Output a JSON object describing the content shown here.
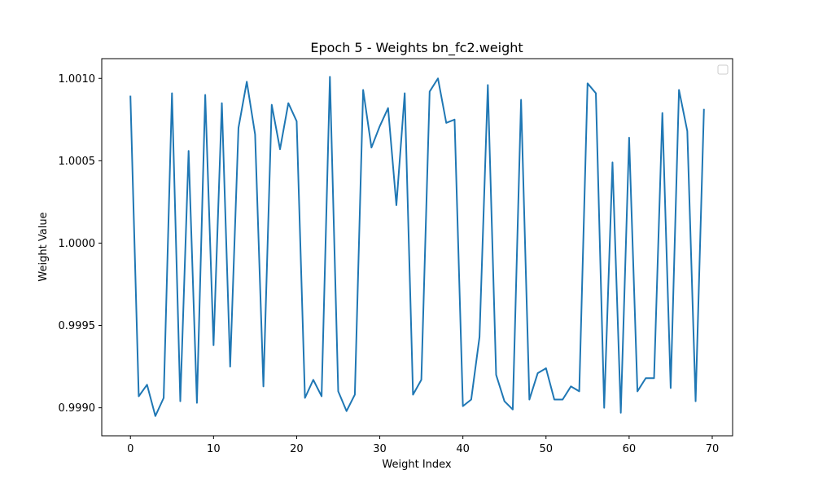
{
  "chart_data": {
    "type": "line",
    "title": "Epoch 5 - Weights bn_fc2.weight",
    "xlabel": "Weight Index",
    "ylabel": "Weight Value",
    "xlim": [
      -3.45,
      72.45
    ],
    "ylim": [
      0.99883,
      1.00112
    ],
    "x_ticks": [
      0,
      10,
      20,
      30,
      40,
      50,
      60,
      70
    ],
    "y_ticks": [
      0.999,
      0.9995,
      1.0,
      1.0005,
      1.001
    ],
    "y_tick_labels": [
      "0.9990",
      "0.9995",
      "1.0000",
      "1.0005",
      "1.0010"
    ],
    "grid": false,
    "legend": "top-right (empty)",
    "colors": {
      "line": "#1f77b4",
      "axes": "#000000",
      "background": "#ffffff"
    },
    "series": [
      {
        "x": [
          0,
          1,
          2,
          3,
          4,
          5,
          6,
          7,
          8,
          9,
          10,
          11,
          12,
          13,
          14,
          15,
          16,
          17,
          18,
          19,
          20,
          21,
          22,
          23,
          24,
          25,
          26,
          27,
          28,
          29,
          30,
          31,
          32,
          33,
          34,
          35,
          36,
          37,
          38,
          39,
          40,
          41,
          42,
          43,
          44,
          45,
          46,
          47,
          48,
          49,
          50,
          51,
          52,
          53,
          54,
          55,
          56,
          57,
          58,
          59,
          60,
          61,
          62,
          63,
          64,
          65,
          66,
          67,
          68,
          69
        ],
        "values": [
          1.00089,
          0.99907,
          0.99914,
          0.99895,
          0.99906,
          1.00091,
          0.99904,
          1.00056,
          0.99903,
          1.0009,
          0.99938,
          1.00085,
          0.99925,
          1.0007,
          1.00098,
          1.00066,
          0.99913,
          1.00084,
          1.00057,
          1.00085,
          1.00074,
          0.99906,
          0.99917,
          0.99907,
          1.00101,
          0.9991,
          0.99898,
          0.99908,
          1.00093,
          1.00058,
          1.00071,
          1.00082,
          1.00023,
          1.00091,
          0.99908,
          0.99917,
          1.00092,
          1.001,
          1.00073,
          1.00075,
          0.99901,
          0.99905,
          0.99943,
          1.00096,
          0.9992,
          0.99904,
          0.99899,
          1.00087,
          0.99905,
          0.99921,
          0.99924,
          0.99905,
          0.99905,
          0.99913,
          0.9991,
          1.00097,
          1.00091,
          0.999,
          1.00049,
          0.99897,
          1.00064,
          0.9991,
          0.99918,
          0.99918,
          1.00079,
          0.99912,
          1.00093,
          1.00068,
          0.99904,
          1.00081
        ]
      }
    ]
  }
}
